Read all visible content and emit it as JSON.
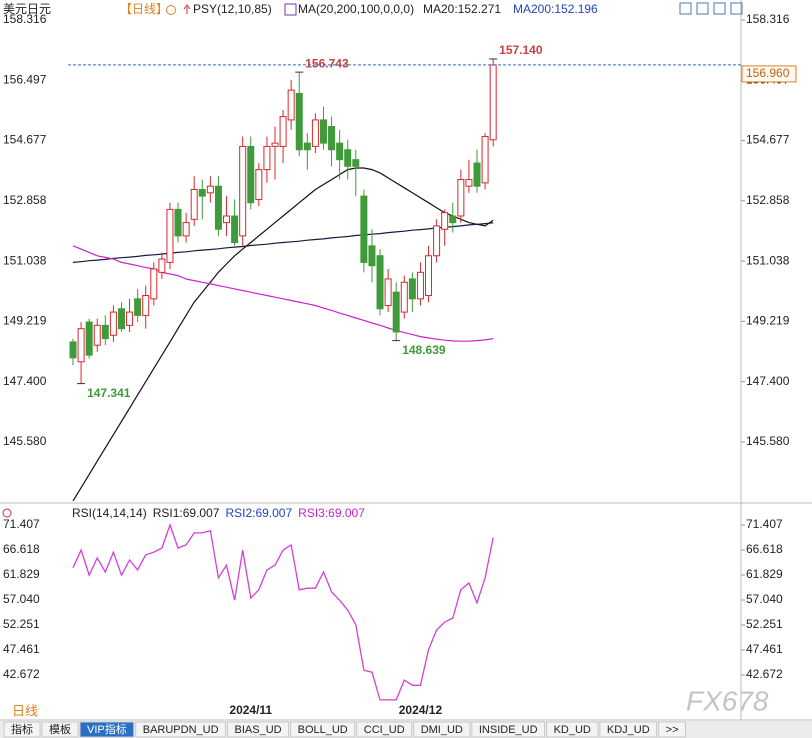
{
  "header": {
    "symbol": "美元日元",
    "period": "【日线】",
    "indicator": "PSY(12,10,85)",
    "ma": "MA(20,200,100,0,0,0)",
    "ma20": "MA20:152.271",
    "ma200": "MA200:152.196"
  },
  "chart_data": [
    {
      "type": "candlestick",
      "up_color": "#d9272e",
      "down_color": "#3f9a3a",
      "open": [
        148.6,
        148.0,
        149.2,
        148.5,
        149.1,
        148.8,
        149.6,
        149.1,
        149.9,
        149.4,
        149.9,
        150.7,
        151.0,
        152.6,
        151.8,
        152.3,
        153.2,
        153.1,
        153.3,
        152.2,
        152.4,
        151.8,
        154.5,
        152.9,
        153.8,
        154.5,
        154.5,
        155.3,
        156.1,
        154.6,
        154.5,
        155.3,
        155.1,
        154.6,
        154.4,
        154.1,
        153.0,
        151.5,
        151.2,
        149.7,
        150.1,
        149.5,
        150.5,
        149.9,
        150.0,
        151.2,
        152.0,
        152.4,
        152.4,
        153.3,
        154.0,
        153.4,
        154.7
      ],
      "high": [
        148.7,
        149.2,
        149.3,
        149.3,
        149.4,
        149.7,
        149.8,
        149.9,
        150.2,
        150.3,
        151.0,
        151.3,
        152.8,
        152.8,
        152.5,
        153.6,
        153.5,
        153.6,
        153.6,
        153.0,
        152.9,
        154.8,
        154.8,
        154.0,
        154.8,
        155.1,
        155.6,
        156.5,
        156.743,
        154.9,
        155.5,
        155.7,
        155.4,
        155.0,
        154.7,
        154.4,
        153.2,
        152.0,
        151.4,
        150.8,
        150.4,
        150.6,
        150.7,
        151.0,
        151.5,
        152.3,
        152.6,
        152.8,
        153.8,
        154.1,
        154.4,
        154.9,
        157.14
      ],
      "low": [
        147.9,
        147.341,
        148.1,
        148.3,
        148.5,
        148.6,
        148.9,
        148.9,
        149.2,
        149.0,
        149.7,
        150.5,
        150.8,
        151.6,
        151.6,
        152.1,
        152.3,
        152.8,
        151.8,
        151.8,
        151.5,
        151.5,
        152.6,
        152.7,
        153.4,
        153.5,
        154.0,
        155.0,
        154.2,
        153.8,
        154.3,
        154.4,
        153.9,
        153.5,
        153.5,
        153.0,
        150.7,
        150.4,
        149.4,
        149.5,
        148.639,
        149.3,
        149.5,
        149.7,
        149.8,
        151.0,
        151.5,
        151.9,
        152.2,
        153.1,
        153.1,
        153.2,
        154.5
      ],
      "close": [
        148.12,
        149.0,
        148.2,
        149.1,
        148.7,
        149.5,
        149.0,
        149.5,
        149.4,
        150.0,
        150.8,
        151.1,
        152.6,
        151.8,
        152.2,
        153.2,
        153.0,
        153.3,
        152.0,
        152.4,
        151.6,
        154.5,
        152.8,
        153.8,
        154.5,
        154.6,
        155.4,
        156.2,
        154.4,
        154.4,
        155.3,
        154.6,
        154.4,
        154.1,
        153.9,
        153.9,
        151.0,
        150.9,
        149.6,
        150.5,
        148.9,
        150.4,
        149.9,
        150.7,
        151.2,
        152.1,
        152.5,
        152.2,
        153.5,
        153.5,
        153.3,
        154.8,
        156.96
      ],
      "lines": [
        {
          "name": "MA20",
          "color": "#111111",
          "values": [
            143.8,
            144.2,
            144.6,
            145.0,
            145.4,
            145.8,
            146.2,
            146.6,
            147.0,
            147.4,
            147.8,
            148.2,
            148.6,
            149.0,
            149.4,
            149.8,
            150.1,
            150.4,
            150.7,
            150.95,
            151.2,
            151.4,
            151.6,
            151.8,
            152.0,
            152.2,
            152.4,
            152.6,
            152.8,
            153.0,
            153.2,
            153.35,
            153.5,
            153.65,
            153.8,
            153.85,
            153.85,
            153.8,
            153.7,
            153.55,
            153.4,
            153.25,
            153.1,
            152.95,
            152.8,
            152.65,
            152.5,
            152.4,
            152.3,
            152.2,
            152.15,
            152.1,
            152.271
          ]
        },
        {
          "name": "MA200",
          "color": "#1a1a40",
          "values": [
            151.0,
            151.02,
            151.05,
            151.07,
            151.09,
            151.12,
            151.14,
            151.16,
            151.18,
            151.21,
            151.23,
            151.25,
            151.28,
            151.3,
            151.32,
            151.35,
            151.37,
            151.39,
            151.41,
            151.44,
            151.46,
            151.48,
            151.51,
            151.53,
            151.55,
            151.58,
            151.6,
            151.62,
            151.64,
            151.67,
            151.69,
            151.71,
            151.74,
            151.76,
            151.78,
            151.81,
            151.83,
            151.85,
            151.87,
            151.9,
            151.92,
            151.94,
            151.97,
            151.99,
            152.01,
            152.04,
            152.06,
            152.08,
            152.1,
            152.13,
            152.15,
            152.17,
            152.196
          ]
        },
        {
          "color": "#cc22cc",
          "values": [
            151.5,
            151.4,
            151.3,
            151.2,
            151.15,
            151.1,
            151.0,
            150.95,
            150.9,
            150.85,
            150.8,
            150.7,
            150.65,
            150.6,
            150.5,
            150.45,
            150.4,
            150.35,
            150.3,
            150.25,
            150.2,
            150.15,
            150.1,
            150.05,
            150.0,
            149.95,
            149.9,
            149.85,
            149.8,
            149.75,
            149.7,
            149.62,
            149.55,
            149.47,
            149.4,
            149.32,
            149.25,
            149.17,
            149.1,
            149.02,
            148.95,
            148.88,
            148.82,
            148.76,
            148.72,
            148.68,
            148.65,
            148.63,
            148.62,
            148.62,
            148.64,
            148.66,
            148.7
          ]
        }
      ],
      "annotations": [
        {
          "value": 156.743,
          "label": "156.743"
        },
        {
          "value": 157.14,
          "label": "157.140"
        },
        {
          "value": 148.639,
          "label": "148.639"
        },
        {
          "value": 147.341,
          "label": "147.341"
        }
      ],
      "high_color": "#c84040",
      "low_color": "#3f9a3a",
      "last_price": {
        "value": 156.96,
        "label": "156.960"
      },
      "ylim": [
        143.828,
        158.316
      ],
      "yticks": [
        158.316,
        156.497,
        154.677,
        152.858,
        151.038,
        149.219,
        {
          "value": 147.4,
          "label": "147.400"
        },
        {
          "value": 145.58,
          "label": "145.580"
        }
      ]
    },
    {
      "type": "line",
      "legend": [
        "RSI(14,14,14)",
        "RSI1:69.007",
        "RSI2:69.007",
        "RSI3:69.007"
      ],
      "legend_colors": [
        "#222222",
        "#222222",
        "#2244bb",
        "#cc22cc"
      ],
      "color": "#d63fd6",
      "categories": [
        null,
        null,
        null,
        null,
        null,
        null,
        null,
        null,
        null,
        null,
        null,
        null,
        null,
        null,
        null,
        null,
        null,
        null,
        null,
        null,
        null,
        null,
        "2024/11",
        null,
        null,
        null,
        null,
        null,
        null,
        null,
        null,
        null,
        null,
        null,
        null,
        null,
        null,
        null,
        null,
        null,
        null,
        null,
        null,
        "2024/12",
        null,
        null,
        null,
        null,
        null,
        null,
        null,
        null,
        null
      ],
      "values": [
        63.2,
        66.6,
        61.8,
        65.1,
        62.4,
        66.2,
        61.8,
        64.7,
        62.8,
        65.7,
        66.2,
        67.0,
        71.4,
        67.0,
        67.6,
        69.9,
        69.9,
        70.3,
        61.3,
        63.7,
        57.0,
        66.6,
        57.4,
        59.0,
        62.8,
        63.7,
        66.6,
        67.6,
        59.0,
        59.3,
        59.3,
        62.4,
        58.6,
        57.0,
        55.1,
        52.3,
        43.6,
        43.2,
        37.9,
        37.9,
        37.9,
        41.7,
        40.7,
        40.7,
        47.5,
        51.3,
        52.8,
        53.6,
        59.0,
        60.3,
        56.5,
        61.3,
        69.007
      ],
      "ylim": [
        37.5,
        71.407
      ],
      "yticks": [
        71.407,
        66.618,
        61.829,
        {
          "value": 57.04,
          "label": "57.040"
        },
        52.251,
        47.461,
        42.672
      ]
    }
  ],
  "footer": {
    "period": "日线",
    "tabs": [
      "指标",
      "模板",
      "VIP指标",
      "BARUPDN_UD",
      "BIAS_UD",
      "BOLL_UD",
      "CCI_UD",
      "DMI_UD",
      "INSIDE_UD",
      "KD_UD",
      "KDJ_UD",
      ">>"
    ],
    "active": "VIP指标"
  },
  "watermark": "FX678"
}
